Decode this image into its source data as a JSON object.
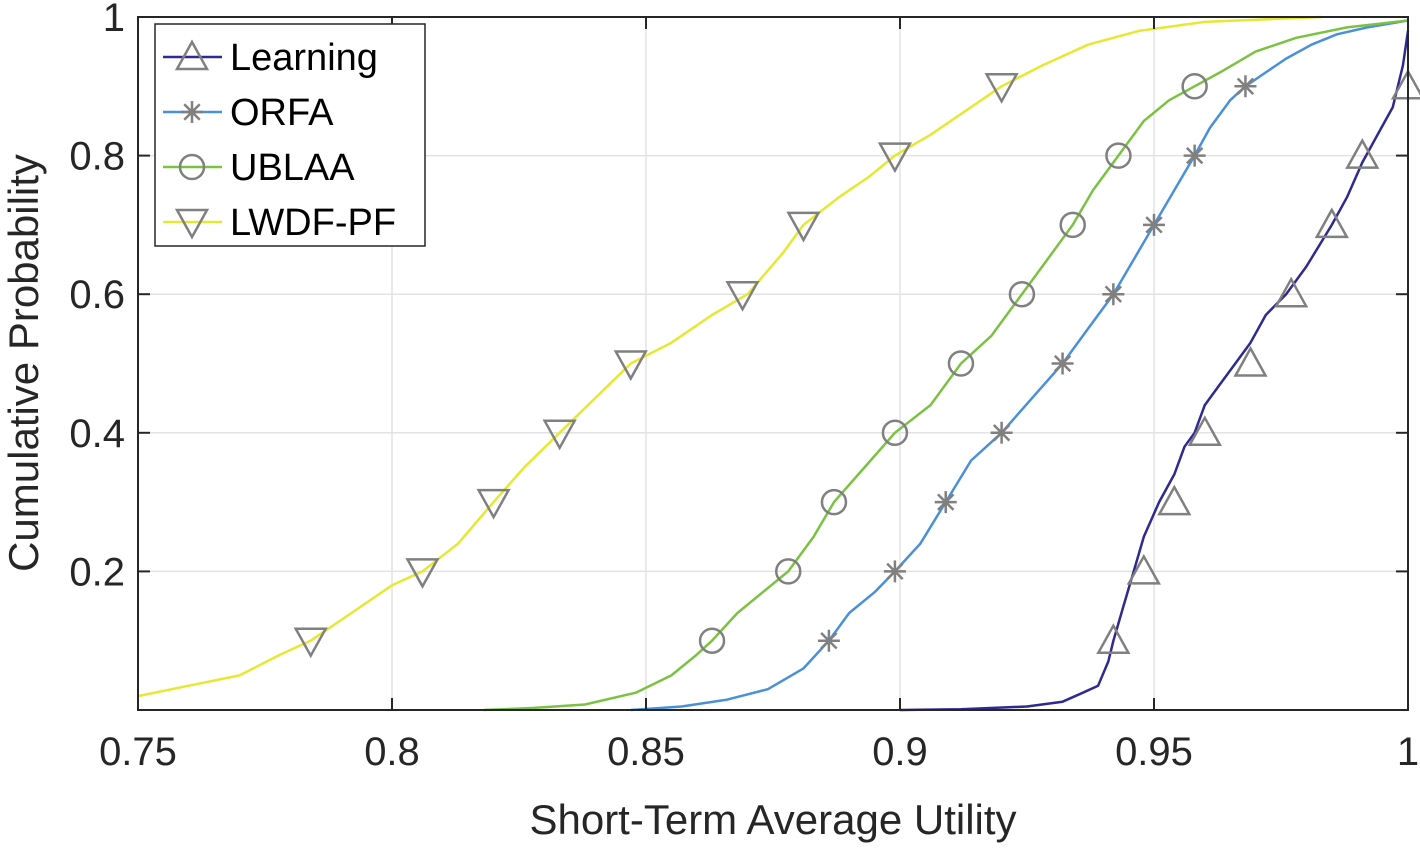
{
  "chart_data": {
    "type": "line",
    "title": "",
    "xlabel": "Short-Term Average Utility",
    "ylabel": "Cumulative Probability",
    "xlim": [
      0.75,
      1.0
    ],
    "ylim": [
      0,
      1.0
    ],
    "grid": true,
    "legend_position": "top-left",
    "xticks": [
      0.75,
      0.8,
      0.85,
      0.9,
      0.95,
      1.0
    ],
    "xtick_labels": [
      "0.75",
      "0.8",
      "0.85",
      "0.9",
      "0.95",
      "1"
    ],
    "yticks": [
      0.2,
      0.4,
      0.6,
      0.8,
      1.0
    ],
    "ytick_labels": [
      "0.2",
      "0.4",
      "0.6",
      "0.8",
      "1"
    ],
    "series": [
      {
        "name": "Learning",
        "color": "#2e2a8f",
        "marker": "triangle-up",
        "x": [
          0.9,
          0.912,
          0.925,
          0.932,
          0.936,
          0.939,
          0.941,
          0.942,
          0.944,
          0.946,
          0.948,
          0.951,
          0.954,
          0.956,
          0.958,
          0.96,
          0.963,
          0.966,
          0.969,
          0.972,
          0.976,
          0.98,
          0.985,
          0.988,
          0.991,
          0.994,
          0.997,
          0.999,
          1.0
        ],
        "y": [
          0.0,
          0.001,
          0.005,
          0.012,
          0.025,
          0.035,
          0.07,
          0.1,
          0.15,
          0.2,
          0.25,
          0.3,
          0.34,
          0.38,
          0.4,
          0.44,
          0.47,
          0.5,
          0.53,
          0.57,
          0.6,
          0.64,
          0.7,
          0.74,
          0.79,
          0.83,
          0.87,
          0.93,
          0.98
        ],
        "markers_x": [
          0.942,
          0.948,
          0.954,
          0.96,
          0.969,
          0.977,
          0.985,
          0.991,
          1.0
        ],
        "markers_y": [
          0.1,
          0.2,
          0.3,
          0.4,
          0.5,
          0.6,
          0.7,
          0.8,
          0.9
        ]
      },
      {
        "name": "ORFA",
        "color": "#4a90d9",
        "marker": "asterisk",
        "x": [
          0.847,
          0.857,
          0.866,
          0.874,
          0.881,
          0.886,
          0.89,
          0.895,
          0.899,
          0.904,
          0.909,
          0.914,
          0.92,
          0.926,
          0.932,
          0.937,
          0.942,
          0.946,
          0.95,
          0.954,
          0.958,
          0.961,
          0.965,
          0.968,
          0.972,
          0.976,
          0.981,
          0.986,
          0.992,
          1.0
        ],
        "y": [
          0.0,
          0.005,
          0.015,
          0.03,
          0.06,
          0.1,
          0.14,
          0.17,
          0.2,
          0.24,
          0.3,
          0.36,
          0.4,
          0.45,
          0.5,
          0.55,
          0.6,
          0.65,
          0.7,
          0.75,
          0.8,
          0.84,
          0.88,
          0.9,
          0.92,
          0.94,
          0.96,
          0.975,
          0.985,
          0.995
        ],
        "markers_x": [
          0.886,
          0.899,
          0.909,
          0.92,
          0.932,
          0.942,
          0.95,
          0.958,
          0.968
        ],
        "markers_y": [
          0.1,
          0.2,
          0.3,
          0.4,
          0.5,
          0.6,
          0.7,
          0.8,
          0.9
        ]
      },
      {
        "name": "UBLAA",
        "color": "#7cc242",
        "marker": "circle",
        "x": [
          0.818,
          0.828,
          0.838,
          0.848,
          0.855,
          0.86,
          0.863,
          0.868,
          0.873,
          0.878,
          0.883,
          0.887,
          0.893,
          0.899,
          0.906,
          0.912,
          0.918,
          0.924,
          0.929,
          0.934,
          0.938,
          0.943,
          0.948,
          0.953,
          0.958,
          0.963,
          0.97,
          0.978,
          0.988,
          1.0
        ],
        "y": [
          0.0,
          0.003,
          0.008,
          0.025,
          0.05,
          0.08,
          0.1,
          0.14,
          0.17,
          0.2,
          0.25,
          0.3,
          0.35,
          0.4,
          0.44,
          0.5,
          0.54,
          0.6,
          0.65,
          0.7,
          0.75,
          0.8,
          0.85,
          0.88,
          0.9,
          0.92,
          0.95,
          0.97,
          0.985,
          0.995
        ],
        "markers_x": [
          0.863,
          0.878,
          0.887,
          0.899,
          0.912,
          0.924,
          0.934,
          0.943,
          0.958
        ],
        "markers_y": [
          0.1,
          0.2,
          0.3,
          0.4,
          0.5,
          0.6,
          0.7,
          0.8,
          0.9
        ]
      },
      {
        "name": "LWDF-PF",
        "color": "#e6e832",
        "marker": "triangle-down",
        "x": [
          0.75,
          0.76,
          0.77,
          0.778,
          0.784,
          0.792,
          0.8,
          0.806,
          0.813,
          0.82,
          0.826,
          0.833,
          0.84,
          0.847,
          0.855,
          0.863,
          0.87,
          0.877,
          0.881,
          0.888,
          0.894,
          0.899,
          0.906,
          0.914,
          0.92,
          0.928,
          0.937,
          0.947,
          0.96,
          0.983
        ],
        "y": [
          0.02,
          0.035,
          0.05,
          0.08,
          0.1,
          0.14,
          0.18,
          0.2,
          0.24,
          0.3,
          0.35,
          0.4,
          0.45,
          0.5,
          0.53,
          0.57,
          0.6,
          0.66,
          0.7,
          0.74,
          0.77,
          0.8,
          0.83,
          0.87,
          0.9,
          0.93,
          0.96,
          0.98,
          0.993,
          1.0
        ],
        "markers_x": [
          0.784,
          0.806,
          0.82,
          0.833,
          0.847,
          0.869,
          0.881,
          0.899,
          0.92
        ],
        "markers_y": [
          0.1,
          0.2,
          0.3,
          0.4,
          0.5,
          0.6,
          0.7,
          0.8,
          0.9
        ]
      }
    ]
  }
}
